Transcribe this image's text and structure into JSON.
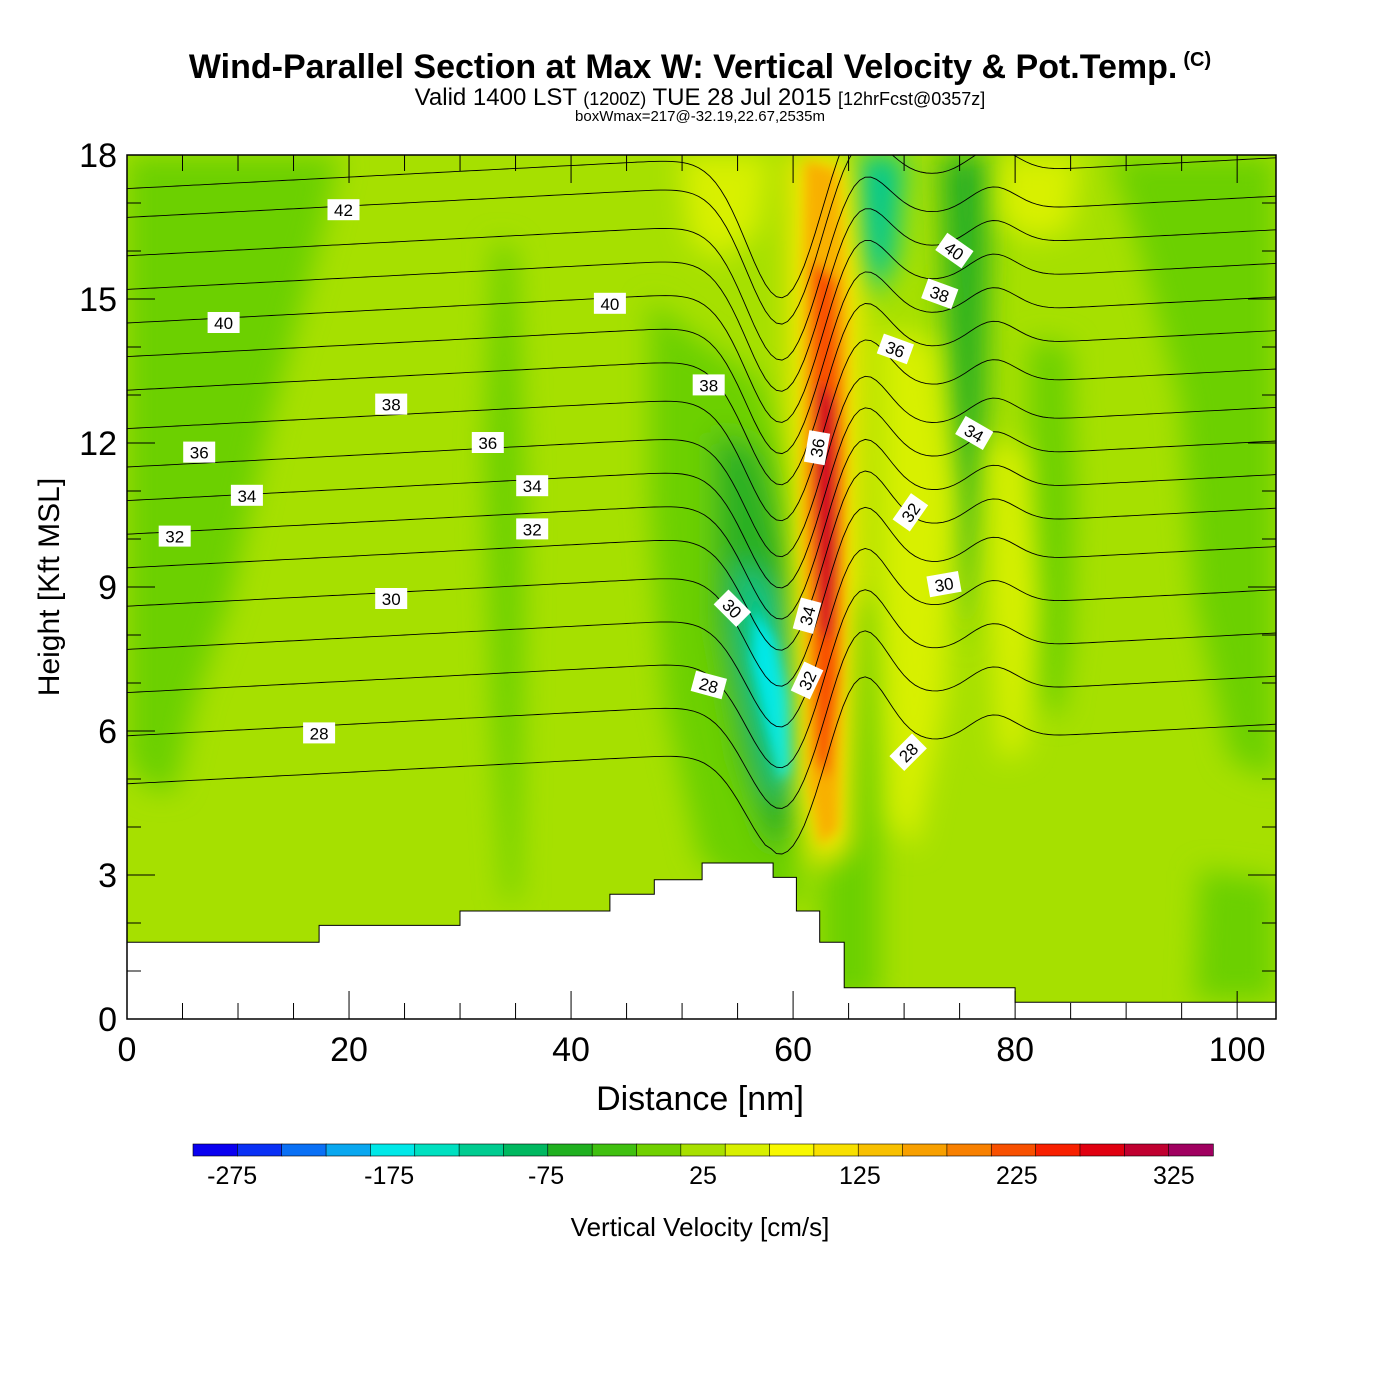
{
  "title": {
    "main": "Wind-Parallel Section at Max W: Vertical Velocity & Pot.Temp.",
    "copyright": "(C)",
    "valid": "Valid 1400 LST",
    "valid_z": "(1200Z)",
    "valid_date": "TUE 28 Jul 2015",
    "forecast": "[12hrFcst@0357z]",
    "box": "boxWmax=217@-32.19,22.67,2535m"
  },
  "chart_data": {
    "type": "heatmap",
    "xlabel": "Distance [nm]",
    "ylabel": "Height [Kft MSL]",
    "xlim": [
      0,
      103.5
    ],
    "ylim": [
      0,
      18
    ],
    "x_ticks": [
      "0",
      "20",
      "40",
      "60",
      "80",
      "100"
    ],
    "x_tick_values": [
      0,
      20,
      40,
      60,
      80,
      100
    ],
    "y_ticks": [
      "0",
      "3",
      "6",
      "9",
      "12",
      "15",
      "18"
    ],
    "y_tick_values": [
      0,
      3,
      6,
      9,
      12,
      15,
      18
    ],
    "colorbar": {
      "label": "Vertical Velocity [cm/s]",
      "min": -300,
      "max": 350,
      "step": 25,
      "tick_labels": [
        "-275",
        "-175",
        "-75",
        "25",
        "125",
        "225",
        "325"
      ],
      "tick_values": [
        -275,
        -175,
        -75,
        25,
        125,
        225,
        325
      ],
      "colors": [
        "#0a00f0",
        "#0a30f5",
        "#0a70f5",
        "#0aa8f0",
        "#00e8e8",
        "#00e0c0",
        "#00cc90",
        "#00b860",
        "#20b020",
        "#40c010",
        "#70d000",
        "#a8e000",
        "#d8f000",
        "#f8f800",
        "#f8e000",
        "#f8c000",
        "#f8a000",
        "#f88000",
        "#f85000",
        "#f82000",
        "#e00010",
        "#c00030",
        "#a00060"
      ]
    },
    "terrain_kft": [
      [
        0,
        1.6
      ],
      [
        17.3,
        1.6
      ],
      [
        17.3,
        1.95
      ],
      [
        30,
        1.95
      ],
      [
        30,
        2.25
      ],
      [
        43.5,
        2.25
      ],
      [
        43.5,
        2.6
      ],
      [
        47.5,
        2.6
      ],
      [
        47.5,
        2.9
      ],
      [
        51.8,
        2.9
      ],
      [
        51.8,
        3.25
      ],
      [
        58.2,
        3.25
      ],
      [
        58.2,
        2.95
      ],
      [
        60.3,
        2.95
      ],
      [
        60.3,
        2.25
      ],
      [
        62.4,
        2.25
      ],
      [
        62.4,
        1.6
      ],
      [
        64.6,
        1.6
      ],
      [
        64.6,
        0.65
      ],
      [
        80,
        0.65
      ],
      [
        80,
        0.35
      ],
      [
        103.5,
        0.35
      ]
    ],
    "theta_contour_labels": [
      {
        "text": "42",
        "x": 19.5,
        "y": 16.85,
        "angle": 0
      },
      {
        "text": "40",
        "x": 8.7,
        "y": 14.5,
        "angle": 0
      },
      {
        "text": "40",
        "x": 43.5,
        "y": 14.9,
        "angle": 0
      },
      {
        "text": "40",
        "x": 74.5,
        "y": 16.0,
        "angle": 35
      },
      {
        "text": "38",
        "x": 23.8,
        "y": 12.8,
        "angle": 0
      },
      {
        "text": "38",
        "x": 52.4,
        "y": 13.2,
        "angle": 0
      },
      {
        "text": "38",
        "x": 73.2,
        "y": 15.1,
        "angle": 20
      },
      {
        "text": "36",
        "x": 6.5,
        "y": 11.8,
        "angle": 0
      },
      {
        "text": "36",
        "x": 32.5,
        "y": 12.0,
        "angle": 0
      },
      {
        "text": "36",
        "x": 62.2,
        "y": 11.9,
        "angle": -80
      },
      {
        "text": "36",
        "x": 69.2,
        "y": 13.95,
        "angle": 20
      },
      {
        "text": "34",
        "x": 10.8,
        "y": 10.9,
        "angle": 0
      },
      {
        "text": "34",
        "x": 36.5,
        "y": 11.1,
        "angle": 0
      },
      {
        "text": "34",
        "x": 61.3,
        "y": 8.4,
        "angle": -75
      },
      {
        "text": "34",
        "x": 76.3,
        "y": 12.2,
        "angle": 30
      },
      {
        "text": "32",
        "x": 4.3,
        "y": 10.05,
        "angle": 0
      },
      {
        "text": "32",
        "x": 36.5,
        "y": 10.2,
        "angle": 0
      },
      {
        "text": "32",
        "x": 61.3,
        "y": 7.05,
        "angle": -65
      },
      {
        "text": "32",
        "x": 70.6,
        "y": 10.55,
        "angle": -55
      },
      {
        "text": "30",
        "x": 23.8,
        "y": 8.75,
        "angle": 0
      },
      {
        "text": "30",
        "x": 54.5,
        "y": 8.55,
        "angle": 45
      },
      {
        "text": "30",
        "x": 73.6,
        "y": 9.05,
        "angle": -10
      },
      {
        "text": "28",
        "x": 17.3,
        "y": 5.95,
        "angle": 0
      },
      {
        "text": "28",
        "x": 52.4,
        "y": 6.95,
        "angle": 15
      },
      {
        "text": "28",
        "x": 70.4,
        "y": 5.55,
        "angle": -45
      }
    ]
  }
}
